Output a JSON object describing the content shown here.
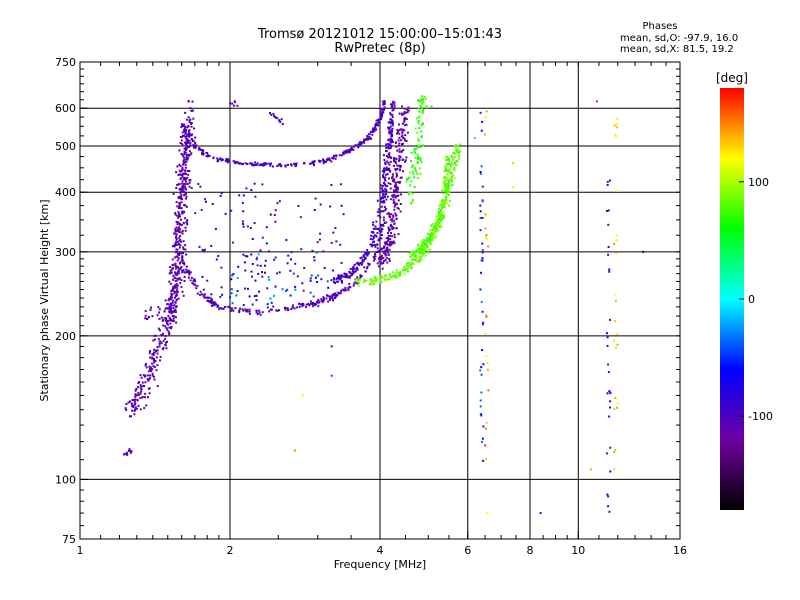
{
  "chart_data": {
    "type": "scatter",
    "title": "Tromsø 20121012 15:00:00–15:01:43",
    "subtitle": "RwPretec (8p)",
    "xlabel": "Frequency [MHz]",
    "ylabel": "Stationary phase Virtual Height [km]",
    "x_scale": "log",
    "y_scale": "log",
    "xlim": [
      1,
      16
    ],
    "ylim": [
      75,
      750
    ],
    "x_ticks": [
      1,
      2,
      4,
      6,
      8,
      10,
      16
    ],
    "x_tick_labels": [
      "1",
      "2",
      "4",
      "6",
      "8",
      "10",
      "16"
    ],
    "x_gridlines": [
      2,
      4,
      6,
      8,
      10
    ],
    "y_ticks": [
      75,
      100,
      200,
      300,
      400,
      500,
      600,
      750
    ],
    "y_tick_labels": [
      "75",
      "100",
      "200",
      "300",
      "400",
      "500",
      "600",
      "750"
    ],
    "y_gridlines": [
      100,
      200,
      300,
      400,
      500,
      600
    ],
    "grid": true,
    "stats": {
      "title": "Phases",
      "o_line": "mean, sd,O: -97.9, 16.0",
      "x_line": "mean, sd,X:  81.5, 19.2"
    },
    "colorbar": {
      "label": "[deg]",
      "min": -180,
      "max": 180,
      "ticks": [
        100,
        0,
        -100
      ],
      "tick_labels": [
        "100",
        "0",
        "-100"
      ],
      "colormap": [
        "#000000",
        "#7000a0",
        "#0000ff",
        "#00ffff",
        "#00ff00",
        "#ffff00",
        "#ff0000"
      ]
    },
    "traces": [
      {
        "kind": "curve",
        "points": [
          [
            1.25,
            140
          ],
          [
            1.3,
            145
          ],
          [
            1.35,
            160
          ],
          [
            1.4,
            175
          ],
          [
            1.45,
            195
          ],
          [
            1.5,
            215
          ],
          [
            1.55,
            240
          ],
          [
            1.58,
            280
          ],
          [
            1.6,
            340
          ],
          [
            1.62,
            420
          ],
          [
            1.64,
            520
          ],
          [
            1.66,
            600
          ]
        ],
        "phase": -105,
        "spread": 0.06,
        "count": 360,
        "band": 0.03
      },
      {
        "kind": "curve",
        "points": [
          [
            1.52,
            210
          ],
          [
            1.55,
            260
          ],
          [
            1.58,
            330
          ],
          [
            1.6,
            400
          ],
          [
            1.62,
            470
          ],
          [
            1.64,
            550
          ]
        ],
        "phase": -110,
        "spread": 0.05,
        "count": 260,
        "band": 0.025
      },
      {
        "kind": "curve",
        "points": [
          [
            1.6,
            560
          ],
          [
            1.7,
            500
          ],
          [
            1.85,
            470
          ],
          [
            2.1,
            460
          ],
          [
            2.5,
            455
          ],
          [
            2.9,
            460
          ],
          [
            3.2,
            470
          ],
          [
            3.5,
            490
          ],
          [
            3.8,
            520
          ],
          [
            4.0,
            570
          ],
          [
            4.1,
            620
          ]
        ],
        "phase": -100,
        "spread": 0.01,
        "count": 280,
        "band": 0.012
      },
      {
        "kind": "curve",
        "points": [
          [
            1.62,
            280
          ],
          [
            1.75,
            245
          ],
          [
            1.9,
            230
          ],
          [
            2.2,
            225
          ],
          [
            2.6,
            228
          ],
          [
            3.0,
            235
          ],
          [
            3.3,
            245
          ],
          [
            3.6,
            262
          ],
          [
            3.9,
            290
          ],
          [
            4.05,
            340
          ],
          [
            4.15,
            420
          ],
          [
            4.2,
            520
          ],
          [
            4.25,
            620
          ]
        ],
        "phase": -105,
        "spread": 0.015,
        "count": 340,
        "band": 0.012
      },
      {
        "kind": "curve",
        "points": [
          [
            3.2,
            260
          ],
          [
            3.5,
            270
          ],
          [
            3.8,
            300
          ],
          [
            4.0,
            360
          ],
          [
            4.1,
            440
          ],
          [
            4.2,
            560
          ]
        ],
        "phase": -95,
        "spread": 0.02,
        "count": 180,
        "band": 0.015
      },
      {
        "kind": "curve",
        "points": [
          [
            4.0,
            280
          ],
          [
            4.2,
            320
          ],
          [
            4.3,
            400
          ],
          [
            4.4,
            500
          ],
          [
            4.5,
            600
          ]
        ],
        "phase": -110,
        "spread": 0.03,
        "count": 260,
        "band": 0.03
      },
      {
        "kind": "curve",
        "points": [
          [
            3.6,
            260
          ],
          [
            4.0,
            262
          ],
          [
            4.4,
            272
          ],
          [
            4.8,
            290
          ],
          [
            5.1,
            320
          ],
          [
            5.3,
            360
          ],
          [
            5.45,
            420
          ],
          [
            5.5,
            480
          ]
        ],
        "phase": 85,
        "spread": 0.02,
        "count": 260,
        "band": 0.015
      },
      {
        "kind": "curve",
        "points": [
          [
            4.6,
            290
          ],
          [
            4.9,
            310
          ],
          [
            5.2,
            340
          ],
          [
            5.4,
            380
          ],
          [
            5.6,
            440
          ],
          [
            5.7,
            500
          ]
        ],
        "phase": 80,
        "spread": 0.025,
        "count": 200,
        "band": 0.02
      },
      {
        "kind": "curve",
        "points": [
          [
            4.6,
            380
          ],
          [
            4.7,
            450
          ],
          [
            4.8,
            520
          ],
          [
            4.85,
            600
          ],
          [
            4.9,
            640
          ]
        ],
        "phase": 70,
        "spread": 0.03,
        "count": 90,
        "band": 0.03
      },
      {
        "kind": "scatter",
        "xrange": [
          1.7,
          3.4
        ],
        "yrange": [
          240,
          420
        ],
        "phase": -100,
        "count": 110
      },
      {
        "kind": "scatter",
        "xrange": [
          2.0,
          3.3
        ],
        "yrange": [
          230,
          300
        ],
        "phase": -60,
        "count": 60
      },
      {
        "kind": "scatter",
        "xrange": [
          1.35,
          1.55
        ],
        "yrange": [
          215,
          230
        ],
        "phase": -110,
        "count": 25
      },
      {
        "kind": "curve",
        "points": [
          [
            1.22,
            112
          ],
          [
            1.26,
            115
          ]
        ],
        "phase": -110,
        "spread": 0.01,
        "count": 14,
        "band": 0.01
      },
      {
        "kind": "curve",
        "points": [
          [
            2.0,
            620
          ],
          [
            2.1,
            600
          ]
        ],
        "phase": -110,
        "spread": 0.01,
        "count": 6,
        "band": 0.02
      },
      {
        "kind": "curve",
        "points": [
          [
            2.4,
            590
          ],
          [
            2.55,
            560
          ]
        ],
        "phase": -100,
        "spread": 0.01,
        "count": 12,
        "band": 0.01
      },
      {
        "kind": "scatter",
        "xrange": [
          6.35,
          6.45
        ],
        "yrange": [
          95,
          640
        ],
        "phase": -60,
        "count": 40
      },
      {
        "kind": "scatter",
        "xrange": [
          6.5,
          6.6
        ],
        "yrange": [
          85,
          600
        ],
        "phase": 140,
        "count": 22
      },
      {
        "kind": "scatter",
        "xrange": [
          11.4,
          11.6
        ],
        "yrange": [
          85,
          600
        ],
        "phase": -90,
        "count": 30
      },
      {
        "kind": "scatter",
        "xrange": [
          11.8,
          12.0
        ],
        "yrange": [
          100,
          640
        ],
        "phase": 120,
        "count": 25
      },
      {
        "kind": "points",
        "pts": [
          [
            3.2,
            190
          ],
          [
            3.2,
            165
          ],
          [
            2.7,
            115
          ],
          [
            2.8,
            150
          ],
          [
            8.4,
            85
          ],
          [
            10.6,
            105
          ],
          [
            10.9,
            620
          ],
          [
            13.5,
            300
          ],
          [
            7.4,
            460
          ],
          [
            7.4,
            410
          ],
          [
            6.2,
            520
          ]
        ],
        "phases": [
          -110,
          -40,
          150,
          110,
          -110,
          140,
          175,
          -160,
          90,
          110,
          -10
        ]
      }
    ]
  }
}
